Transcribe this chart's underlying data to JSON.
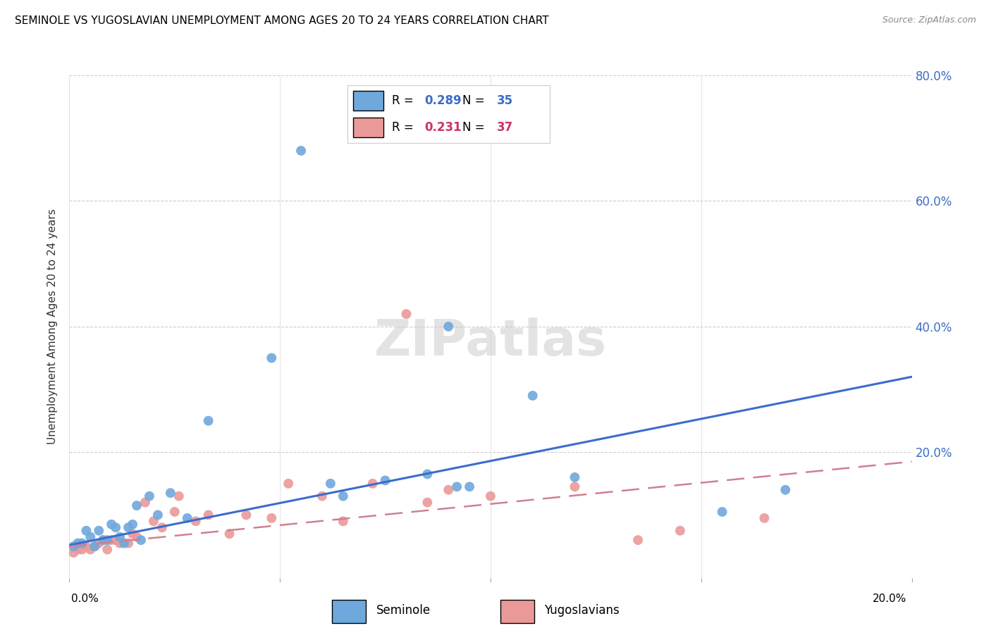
{
  "title": "SEMINOLE VS YUGOSLAVIAN UNEMPLOYMENT AMONG AGES 20 TO 24 YEARS CORRELATION CHART",
  "source": "Source: ZipAtlas.com",
  "ylabel": "Unemployment Among Ages 20 to 24 years",
  "xlim": [
    0.0,
    0.2
  ],
  "ylim": [
    0.0,
    0.8
  ],
  "yticks": [
    0.0,
    0.2,
    0.4,
    0.6,
    0.8
  ],
  "ytick_labels": [
    "",
    "20.0%",
    "40.0%",
    "60.0%",
    "80.0%"
  ],
  "xticks": [
    0.0,
    0.05,
    0.1,
    0.15,
    0.2
  ],
  "seminole_color": "#6fa8dc",
  "yugoslavian_color": "#ea9999",
  "trend_seminole_color": "#3b6ccc",
  "trend_yugoslavian_color": "#d08090",
  "seminole_R": 0.289,
  "seminole_N": 35,
  "yugoslavian_R": 0.231,
  "yugoslavian_N": 37,
  "watermark": "ZIPatlas",
  "seminole_x": [
    0.001,
    0.002,
    0.003,
    0.004,
    0.005,
    0.006,
    0.007,
    0.008,
    0.009,
    0.01,
    0.011,
    0.012,
    0.013,
    0.014,
    0.015,
    0.016,
    0.017,
    0.019,
    0.021,
    0.024,
    0.028,
    0.033,
    0.048,
    0.055,
    0.062,
    0.065,
    0.075,
    0.085,
    0.09,
    0.092,
    0.095,
    0.11,
    0.12,
    0.155,
    0.17
  ],
  "seminole_y": [
    0.05,
    0.055,
    0.055,
    0.075,
    0.065,
    0.05,
    0.075,
    0.06,
    0.06,
    0.085,
    0.08,
    0.065,
    0.055,
    0.08,
    0.085,
    0.115,
    0.06,
    0.13,
    0.1,
    0.135,
    0.095,
    0.25,
    0.35,
    0.68,
    0.15,
    0.13,
    0.155,
    0.165,
    0.4,
    0.145,
    0.145,
    0.29,
    0.16,
    0.105,
    0.14
  ],
  "yugoslavian_x": [
    0.001,
    0.002,
    0.003,
    0.004,
    0.005,
    0.006,
    0.007,
    0.008,
    0.009,
    0.01,
    0.011,
    0.012,
    0.014,
    0.015,
    0.016,
    0.018,
    0.02,
    0.022,
    0.025,
    0.026,
    0.03,
    0.033,
    0.038,
    0.042,
    0.048,
    0.052,
    0.06,
    0.065,
    0.072,
    0.08,
    0.085,
    0.09,
    0.1,
    0.12,
    0.135,
    0.145,
    0.165
  ],
  "yugoslavian_y": [
    0.04,
    0.045,
    0.045,
    0.05,
    0.045,
    0.05,
    0.055,
    0.06,
    0.045,
    0.06,
    0.06,
    0.055,
    0.055,
    0.07,
    0.065,
    0.12,
    0.09,
    0.08,
    0.105,
    0.13,
    0.09,
    0.1,
    0.07,
    0.1,
    0.095,
    0.15,
    0.13,
    0.09,
    0.15,
    0.42,
    0.12,
    0.14,
    0.13,
    0.145,
    0.06,
    0.075,
    0.095
  ],
  "trend_sem_x0": 0.0,
  "trend_sem_y0": 0.052,
  "trend_sem_x1": 0.2,
  "trend_sem_y1": 0.32,
  "trend_yug_x0": 0.0,
  "trend_yug_y0": 0.05,
  "trend_yug_x1": 0.2,
  "trend_yug_y1": 0.185
}
